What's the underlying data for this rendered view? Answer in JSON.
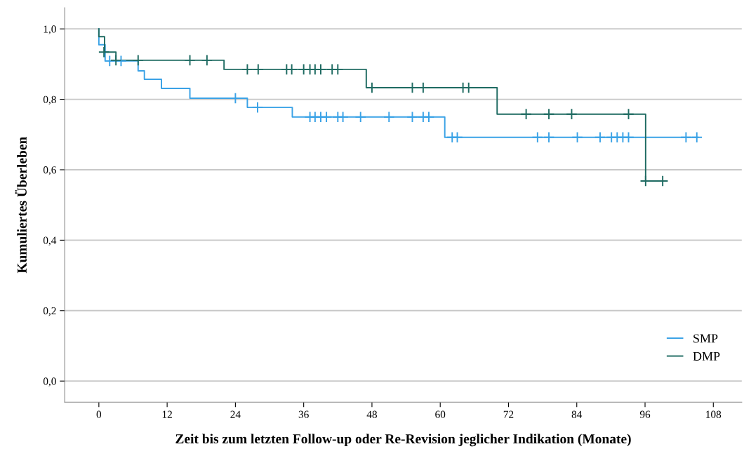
{
  "chart_data": {
    "type": "step",
    "xlabel": "Zeit bis zum letzten Follow-up oder Re-Revision jeglicher Indikation (Monate)",
    "ylabel": "Kumuliertes Überleben",
    "xlim": [
      -6,
      113
    ],
    "xticks": [
      0,
      12,
      24,
      36,
      48,
      60,
      72,
      84,
      96,
      108
    ],
    "ylim": [
      -0.06,
      1.06
    ],
    "yticks": [
      {
        "value": 0,
        "label": "0,0"
      },
      {
        "value": 0.2,
        "label": "0,2"
      },
      {
        "value": 0.4,
        "label": "0,4"
      },
      {
        "value": 0.6,
        "label": "0,6"
      },
      {
        "value": 0.8,
        "label": "0,8"
      },
      {
        "value": 1.0,
        "label": "1,0"
      }
    ],
    "grid": "y",
    "legend": "bottom right",
    "series": [
      {
        "name": "SMP",
        "color": "#3aa2e6",
        "marker": "none",
        "x": [
          0,
          0,
          1.1,
          6.9,
          8.0,
          11.0,
          16.0,
          26.1,
          34.0,
          60.8,
          105.3
        ],
        "values": [
          1.0,
          0.955,
          0.909,
          0.881,
          0.857,
          0.831,
          0.803,
          0.777,
          0.75,
          0.692,
          0.692
        ]
      },
      {
        "name": "DMP",
        "color": "#1f6b62",
        "marker": "none",
        "x": [
          0,
          0,
          1.0,
          3.0,
          22.0,
          47.0,
          70.0,
          96.1,
          99.1
        ],
        "values": [
          1.0,
          0.978,
          0.934,
          0.911,
          0.885,
          0.833,
          0.758,
          0.568,
          0.568
        ]
      },
      {
        "type": "scatter",
        "color": "#3aa2e6",
        "marker": "cross",
        "x": [
          1.9,
          3.9,
          24.0,
          27.9,
          37.1,
          38.0,
          39.0,
          40.0,
          42.0,
          42.9,
          46.0,
          51.0,
          55.1,
          57.0,
          58.0,
          62.1,
          63.0,
          77.1,
          79.1,
          84.1,
          88.1,
          90.1,
          91.1,
          92.1,
          93.1,
          103.2,
          105.1
        ],
        "values": [
          0.909,
          0.909,
          0.803,
          0.777,
          0.75,
          0.75,
          0.75,
          0.75,
          0.75,
          0.75,
          0.75,
          0.75,
          0.75,
          0.75,
          0.75,
          0.692,
          0.692,
          0.692,
          0.692,
          0.692,
          0.692,
          0.692,
          0.692,
          0.692,
          0.692,
          0.692,
          0.692
        ]
      },
      {
        "type": "scatter",
        "color": "#1f6b62",
        "marker": "cross",
        "x": [
          0.9,
          3.0,
          6.9,
          16.0,
          19.0,
          26.1,
          28.0,
          33.0,
          33.9,
          36.0,
          37.1,
          38.0,
          39.0,
          41.0,
          42.0,
          48.0,
          55.1,
          57.0,
          64.0,
          65.0,
          75.1,
          79.1,
          83.1,
          93.1,
          96.1,
          99.1
        ],
        "values": [
          0.934,
          0.911,
          0.911,
          0.911,
          0.911,
          0.885,
          0.885,
          0.885,
          0.885,
          0.885,
          0.885,
          0.885,
          0.885,
          0.885,
          0.885,
          0.833,
          0.833,
          0.833,
          0.833,
          0.833,
          0.758,
          0.758,
          0.758,
          0.758,
          0.568,
          0.568
        ]
      }
    ]
  }
}
